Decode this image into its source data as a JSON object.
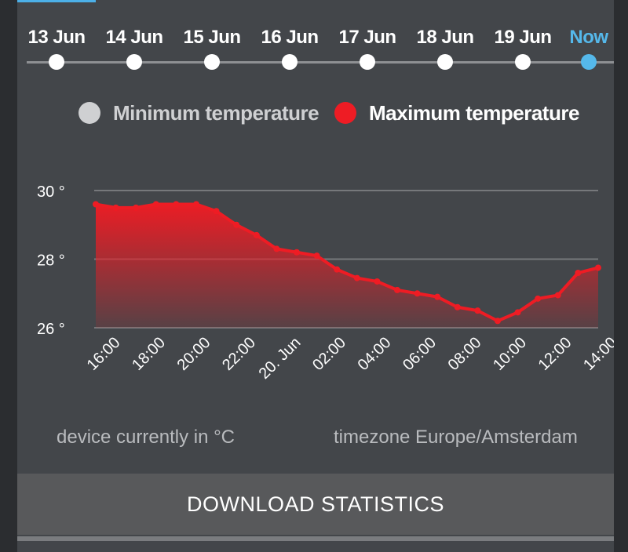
{
  "timeline": {
    "days": [
      {
        "label": "13 Jun",
        "active": false
      },
      {
        "label": "14 Jun",
        "active": false
      },
      {
        "label": "15 Jun",
        "active": false
      },
      {
        "label": "16 Jun",
        "active": false
      },
      {
        "label": "17 Jun",
        "active": false
      },
      {
        "label": "18 Jun",
        "active": false
      },
      {
        "label": "19 Jun",
        "active": false
      },
      {
        "label": "Now",
        "active": true
      }
    ]
  },
  "legend": {
    "min_label": "Minimum temperature",
    "max_label": "Maximum temperature",
    "min_color": "#cfd0d2",
    "max_color": "#ee1c24"
  },
  "chart_data": {
    "type": "area",
    "title": "",
    "xlabel": "",
    "ylabel": "",
    "ylim": [
      26,
      30
    ],
    "y_ticks": [
      "30 °",
      "28 °",
      "26 °"
    ],
    "x_tick_labels": [
      "16:00",
      "18:00",
      "20:00",
      "22:00",
      "20. Jun",
      "02:00",
      "04:00",
      "06:00",
      "08:00",
      "10:00",
      "12:00",
      "14:00"
    ],
    "series": [
      {
        "name": "Maximum temperature",
        "color": "#ee1c24",
        "values": [
          29.6,
          29.5,
          29.5,
          29.6,
          29.6,
          29.6,
          29.4,
          29.0,
          28.7,
          28.3,
          28.2,
          28.1,
          27.7,
          27.45,
          27.35,
          27.1,
          27.0,
          26.9,
          26.6,
          26.5,
          26.2,
          26.45,
          26.85,
          26.95,
          27.6,
          27.75
        ]
      }
    ],
    "grid": true
  },
  "footer": {
    "unit_note": "device currently in °C",
    "timezone_note": "timezone Europe/Amsterdam",
    "download_label": "DOWNLOAD STATISTICS"
  }
}
